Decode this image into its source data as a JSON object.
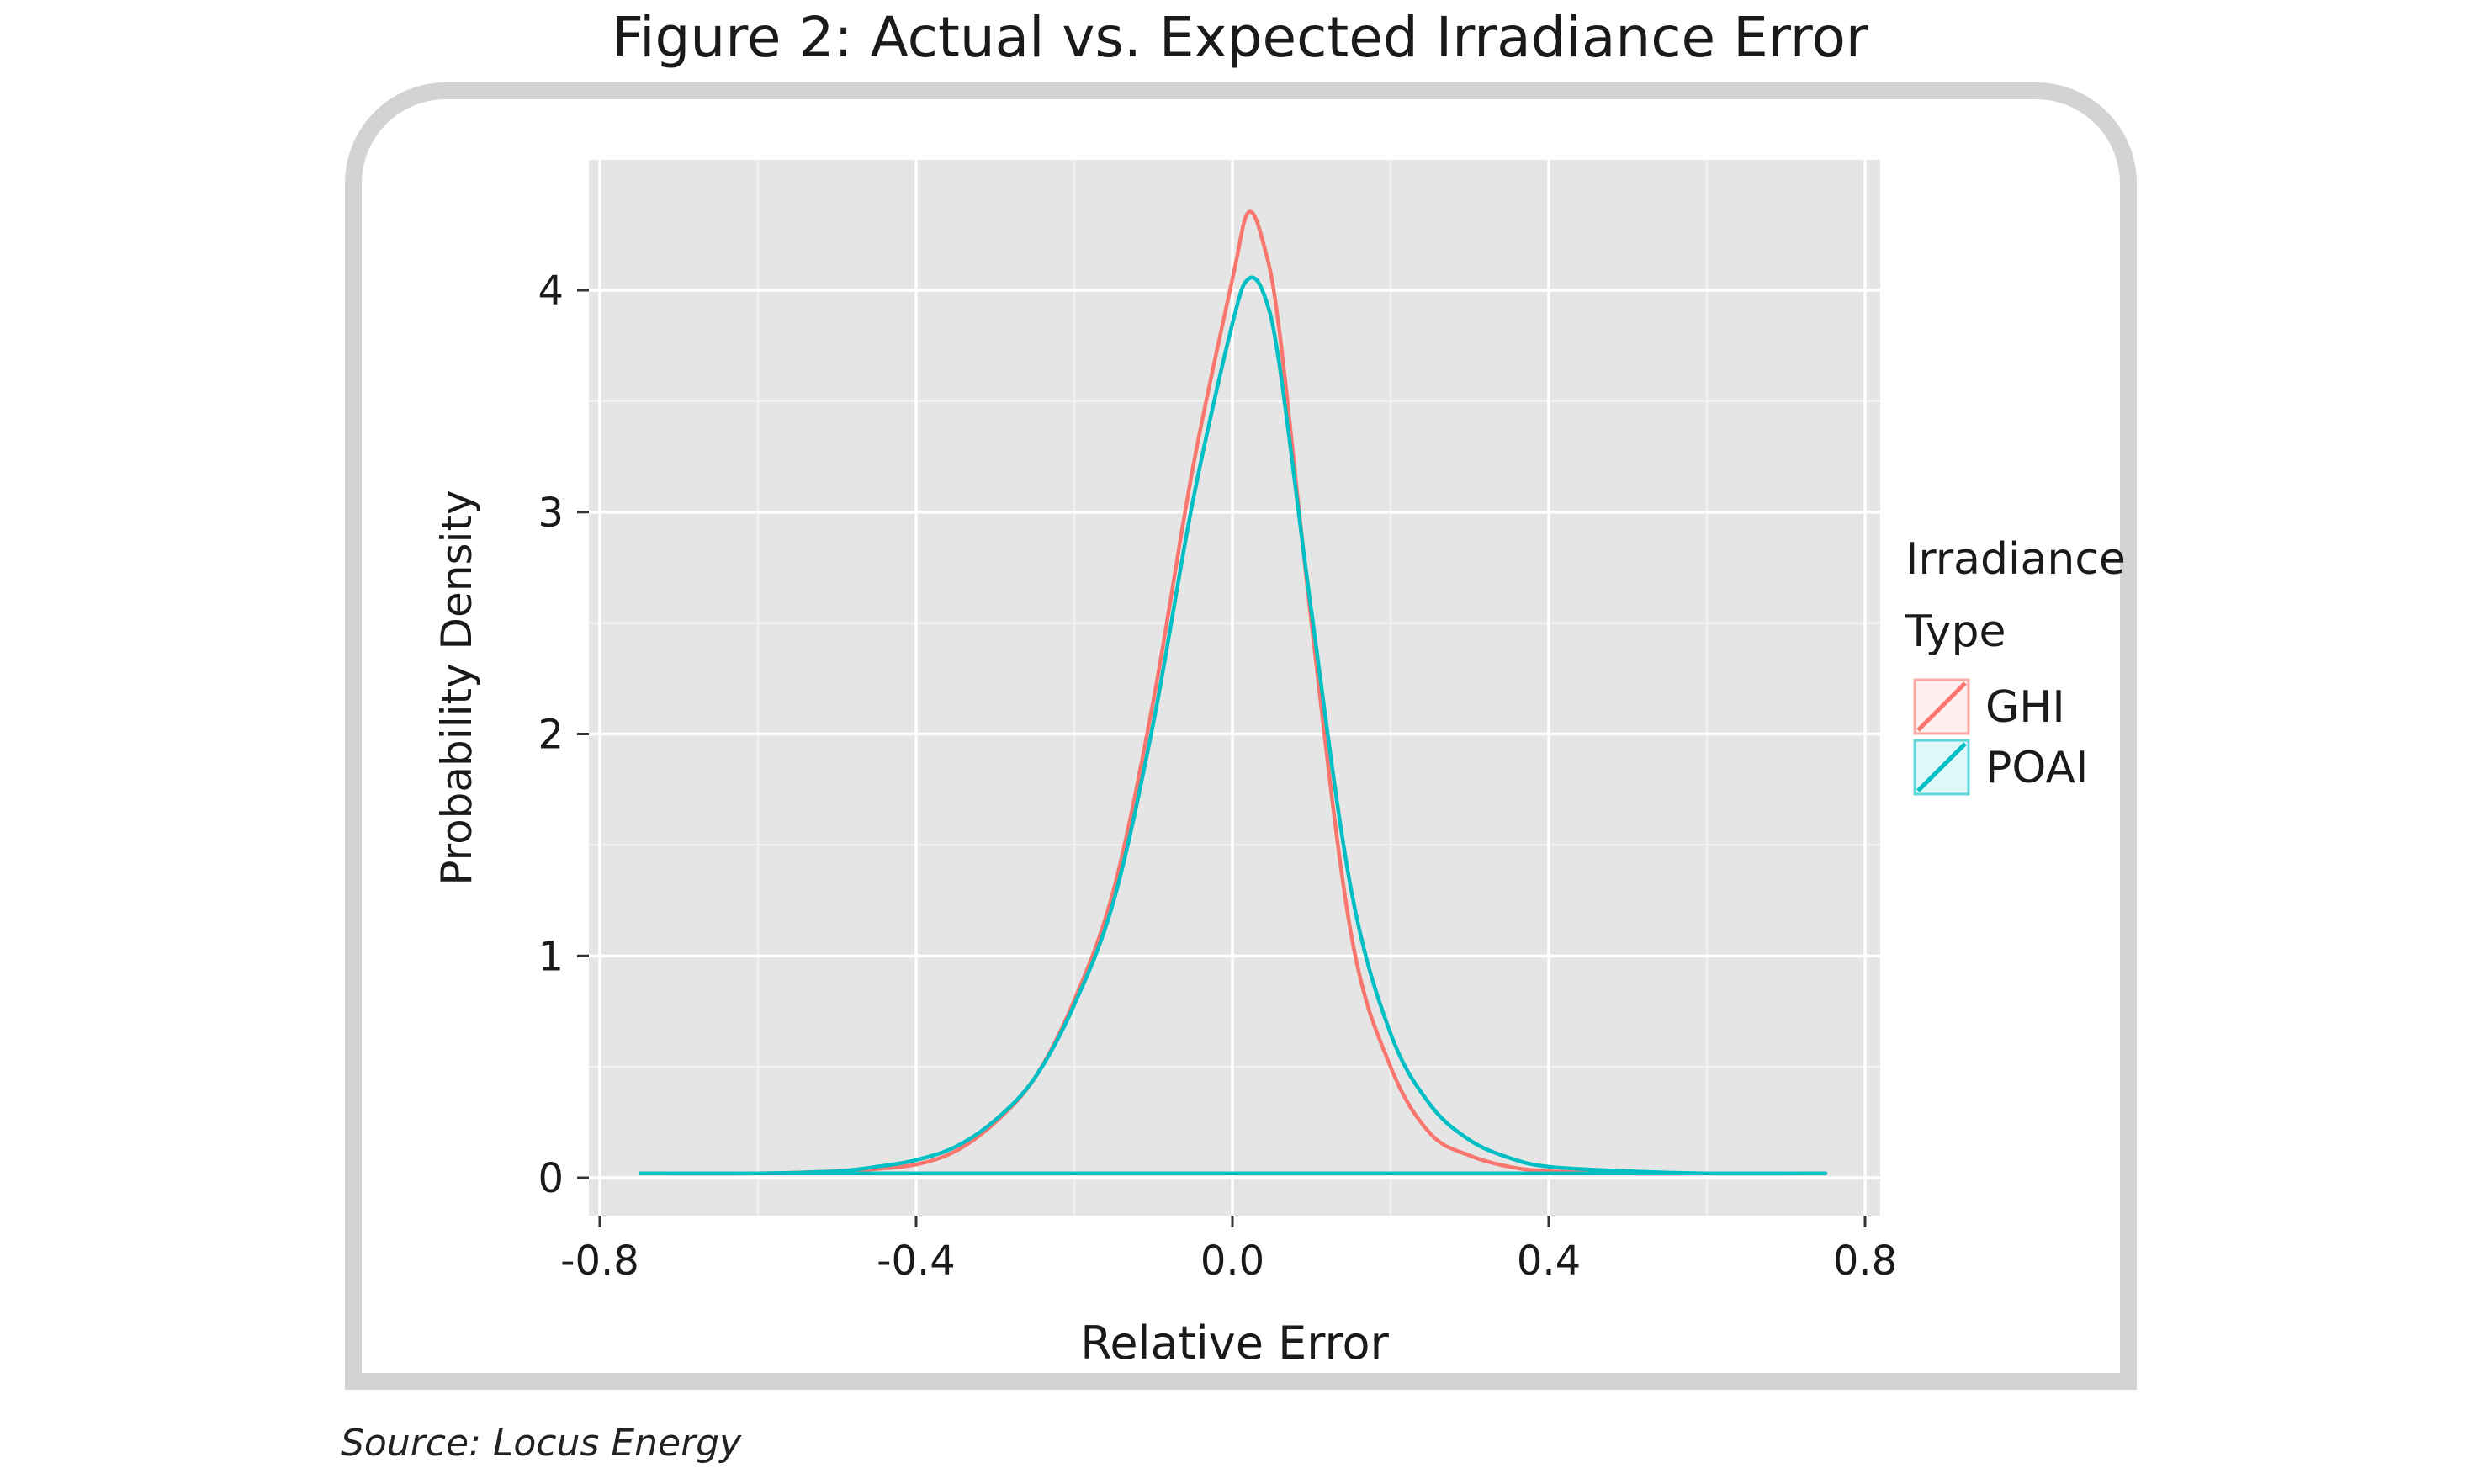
{
  "title": "Figure 2: Actual vs. Expected Irradiance Error",
  "source": "Source: Locus Energy",
  "colors": {
    "ghi": "#F8766D",
    "poai": "#00BFC4",
    "panel": "#E5E5E5",
    "grid": "#FFFFFF",
    "frame": "#D2D3D5"
  },
  "chart_data": {
    "type": "line",
    "xlabel": "Relative Error",
    "ylabel": "Probability Density",
    "xlim": [
      -0.8,
      0.8
    ],
    "ylim": [
      0,
      4.5
    ],
    "xticks": [
      -0.8,
      -0.4,
      0.0,
      0.4,
      0.8
    ],
    "xtick_labels": [
      "-0.8",
      "-0.4",
      "0.0",
      "0.4",
      "0.8"
    ],
    "yticks": [
      0,
      1,
      2,
      3,
      4
    ],
    "ytick_labels": [
      "0",
      "1",
      "2",
      "3",
      "4"
    ],
    "grid": true,
    "legend": {
      "title": "Irradiance Type",
      "title_lines": [
        "Irradiance",
        "Type"
      ],
      "placement": "right"
    },
    "series": [
      {
        "name": "GHI",
        "color": "#F8766D",
        "x": [
          -0.75,
          -0.6,
          -0.5,
          -0.45,
          -0.4,
          -0.35,
          -0.3,
          -0.25,
          -0.2,
          -0.15,
          -0.1,
          -0.05,
          0.0,
          0.02,
          0.04,
          0.06,
          0.1,
          0.15,
          0.2,
          0.25,
          0.3,
          0.35,
          0.4,
          0.5,
          0.6,
          0.75
        ],
        "y": [
          0.02,
          0.02,
          0.03,
          0.04,
          0.06,
          0.12,
          0.25,
          0.45,
          0.8,
          1.3,
          2.15,
          3.2,
          4.05,
          4.35,
          4.2,
          3.8,
          2.5,
          1.1,
          0.5,
          0.2,
          0.1,
          0.05,
          0.03,
          0.02,
          0.02,
          0.02
        ]
      },
      {
        "name": "POAI",
        "color": "#00BFC4",
        "x": [
          -0.75,
          -0.6,
          -0.5,
          -0.45,
          -0.4,
          -0.35,
          -0.3,
          -0.25,
          -0.2,
          -0.15,
          -0.1,
          -0.05,
          0.0,
          0.02,
          0.04,
          0.06,
          0.1,
          0.15,
          0.2,
          0.25,
          0.3,
          0.35,
          0.4,
          0.5,
          0.6,
          0.75
        ],
        "y": [
          0.02,
          0.02,
          0.03,
          0.05,
          0.08,
          0.14,
          0.26,
          0.45,
          0.78,
          1.25,
          2.05,
          3.05,
          3.85,
          4.05,
          3.98,
          3.65,
          2.55,
          1.3,
          0.65,
          0.33,
          0.17,
          0.09,
          0.05,
          0.03,
          0.02,
          0.02
        ]
      }
    ]
  }
}
